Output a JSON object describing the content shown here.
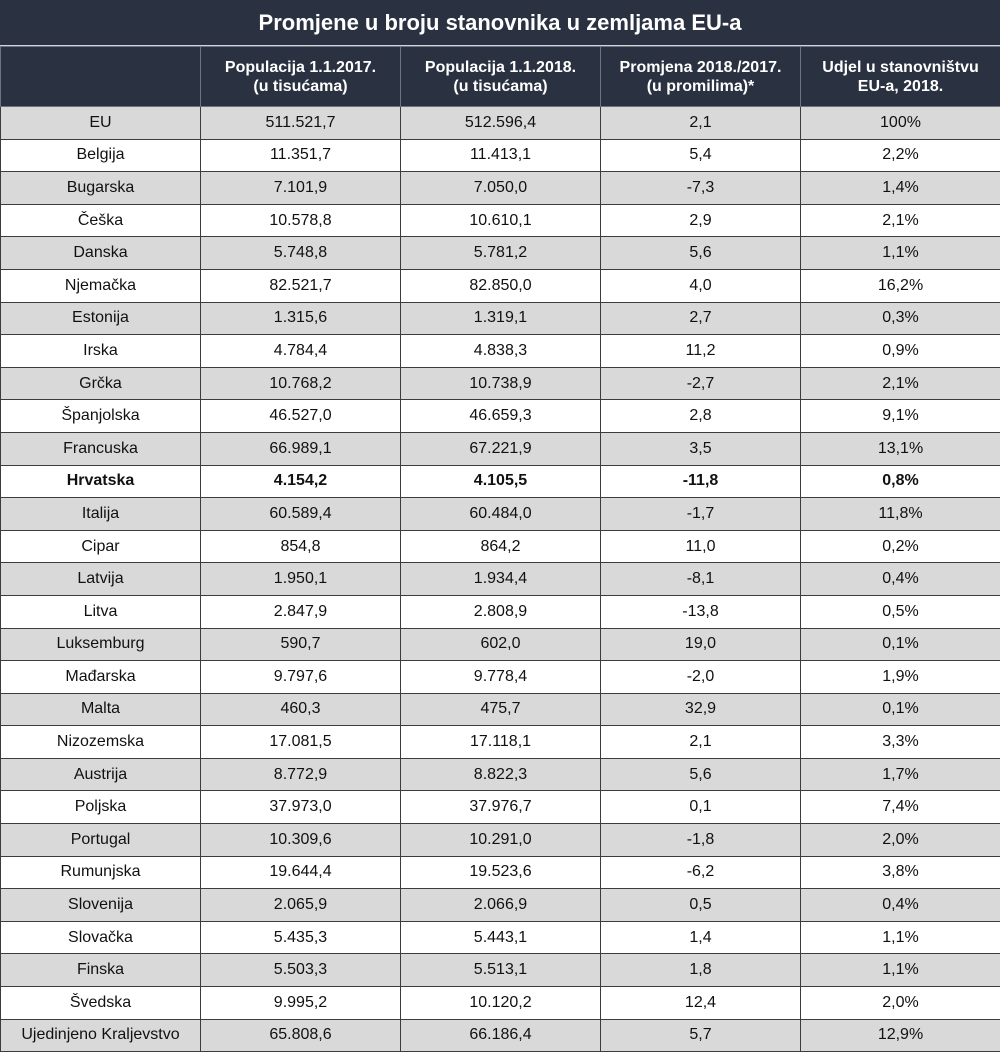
{
  "title": "Promjene u broju stanovnika u zemljama EU-a",
  "chart_data": {
    "type": "table",
    "title": "Promjene u broju stanovnika u zemljama EU-a",
    "columns": [
      {
        "line1": "",
        "line2": ""
      },
      {
        "line1": "Populacija 1.1.2017.",
        "line2": "(u tisućama)"
      },
      {
        "line1": "Populacija 1.1.2018.",
        "line2": "(u tisućama)"
      },
      {
        "line1": "Promjena 2018./2017.",
        "line2": "(u promilima)*"
      },
      {
        "line1": "Udjel u stanovništvu",
        "line2": "EU-a, 2018."
      }
    ],
    "rows": [
      {
        "country": "EU",
        "pop2017": "511.521,7",
        "pop2018": "512.596,4",
        "change": "2,1",
        "share": "100%",
        "highlight": false
      },
      {
        "country": "Belgija",
        "pop2017": "11.351,7",
        "pop2018": "11.413,1",
        "change": "5,4",
        "share": "2,2%",
        "highlight": false
      },
      {
        "country": "Bugarska",
        "pop2017": "7.101,9",
        "pop2018": "7.050,0",
        "change": "-7,3",
        "share": "1,4%",
        "highlight": false
      },
      {
        "country": "Češka",
        "pop2017": "10.578,8",
        "pop2018": "10.610,1",
        "change": "2,9",
        "share": "2,1%",
        "highlight": false
      },
      {
        "country": "Danska",
        "pop2017": "5.748,8",
        "pop2018": "5.781,2",
        "change": "5,6",
        "share": "1,1%",
        "highlight": false
      },
      {
        "country": "Njemačka",
        "pop2017": "82.521,7",
        "pop2018": "82.850,0",
        "change": "4,0",
        "share": "16,2%",
        "highlight": false
      },
      {
        "country": "Estonija",
        "pop2017": "1.315,6",
        "pop2018": "1.319,1",
        "change": "2,7",
        "share": "0,3%",
        "highlight": false
      },
      {
        "country": "Irska",
        "pop2017": "4.784,4",
        "pop2018": "4.838,3",
        "change": "11,2",
        "share": "0,9%",
        "highlight": false
      },
      {
        "country": "Grčka",
        "pop2017": "10.768,2",
        "pop2018": "10.738,9",
        "change": "-2,7",
        "share": "2,1%",
        "highlight": false
      },
      {
        "country": "Španjolska",
        "pop2017": "46.527,0",
        "pop2018": "46.659,3",
        "change": "2,8",
        "share": "9,1%",
        "highlight": false
      },
      {
        "country": "Francuska",
        "pop2017": "66.989,1",
        "pop2018": "67.221,9",
        "change": "3,5",
        "share": "13,1%",
        "highlight": false
      },
      {
        "country": "Hrvatska",
        "pop2017": "4.154,2",
        "pop2018": "4.105,5",
        "change": "-11,8",
        "share": "0,8%",
        "highlight": true
      },
      {
        "country": "Italija",
        "pop2017": "60.589,4",
        "pop2018": "60.484,0",
        "change": "-1,7",
        "share": "11,8%",
        "highlight": false
      },
      {
        "country": "Cipar",
        "pop2017": "854,8",
        "pop2018": "864,2",
        "change": "11,0",
        "share": "0,2%",
        "highlight": false
      },
      {
        "country": "Latvija",
        "pop2017": "1.950,1",
        "pop2018": "1.934,4",
        "change": "-8,1",
        "share": "0,4%",
        "highlight": false
      },
      {
        "country": "Litva",
        "pop2017": "2.847,9",
        "pop2018": "2.808,9",
        "change": "-13,8",
        "share": "0,5%",
        "highlight": false
      },
      {
        "country": "Luksemburg",
        "pop2017": "590,7",
        "pop2018": "602,0",
        "change": "19,0",
        "share": "0,1%",
        "highlight": false
      },
      {
        "country": "Mađarska",
        "pop2017": "9.797,6",
        "pop2018": "9.778,4",
        "change": "-2,0",
        "share": "1,9%",
        "highlight": false
      },
      {
        "country": "Malta",
        "pop2017": "460,3",
        "pop2018": "475,7",
        "change": "32,9",
        "share": "0,1%",
        "highlight": false
      },
      {
        "country": "Nizozemska",
        "pop2017": "17.081,5",
        "pop2018": "17.118,1",
        "change": "2,1",
        "share": "3,3%",
        "highlight": false
      },
      {
        "country": "Austrija",
        "pop2017": "8.772,9",
        "pop2018": "8.822,3",
        "change": "5,6",
        "share": "1,7%",
        "highlight": false
      },
      {
        "country": "Poljska",
        "pop2017": "37.973,0",
        "pop2018": "37.976,7",
        "change": "0,1",
        "share": "7,4%",
        "highlight": false
      },
      {
        "country": "Portugal",
        "pop2017": "10.309,6",
        "pop2018": "10.291,0",
        "change": "-1,8",
        "share": "2,0%",
        "highlight": false
      },
      {
        "country": "Rumunjska",
        "pop2017": "19.644,4",
        "pop2018": "19.523,6",
        "change": "-6,2",
        "share": "3,8%",
        "highlight": false
      },
      {
        "country": "Slovenija",
        "pop2017": "2.065,9",
        "pop2018": "2.066,9",
        "change": "0,5",
        "share": "0,4%",
        "highlight": false
      },
      {
        "country": "Slovačka",
        "pop2017": "5.435,3",
        "pop2018": "5.443,1",
        "change": "1,4",
        "share": "1,1%",
        "highlight": false
      },
      {
        "country": "Finska",
        "pop2017": "5.503,3",
        "pop2018": "5.513,1",
        "change": "1,8",
        "share": "1,1%",
        "highlight": false
      },
      {
        "country": "Švedska",
        "pop2017": "9.995,2",
        "pop2018": "10.120,2",
        "change": "12,4",
        "share": "2,0%",
        "highlight": false
      },
      {
        "country": "Ujedinjeno Kraljevstvo",
        "pop2017": "65.808,6",
        "pop2018": "66.186,4",
        "change": "5,7",
        "share": "12,9%",
        "highlight": false
      }
    ]
  },
  "colors": {
    "header_bg": "#2a3140",
    "header_text": "#ffffff",
    "row_shaded": "#d9d9d9",
    "row_plain": "#ffffff"
  }
}
